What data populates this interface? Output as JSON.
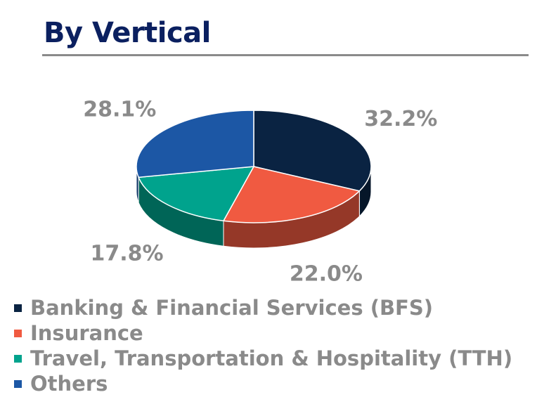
{
  "header": {
    "title": "By Vertical"
  },
  "chart_data": {
    "type": "pie",
    "title": "By Vertical",
    "categories": [
      "Banking & Financial Services (BFS)",
      "Insurance",
      "Travel, Transportation & Hospitality (TTH)",
      "Others"
    ],
    "values": [
      32.2,
      22.0,
      17.8,
      28.1
    ],
    "labels": [
      "32.2%",
      "22.0%",
      "17.8%",
      "28.1%"
    ],
    "colors": [
      "#0a2342",
      "#f05a41",
      "#00a38d",
      "#1c57a5"
    ],
    "legend_position": "bottom"
  }
}
